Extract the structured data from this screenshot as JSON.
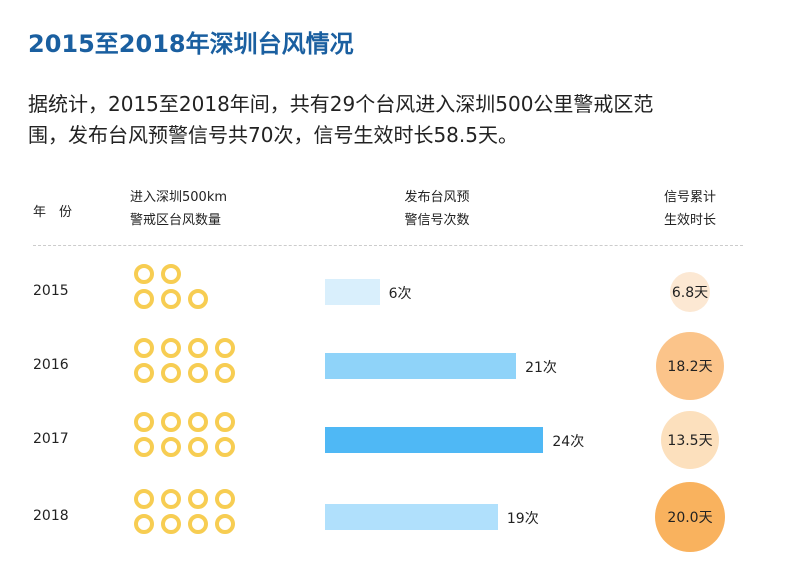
{
  "title": "2015至2018年深圳台风情况",
  "intro": [
    "据统计，2015至2018年间，共有29个台风进入深圳500公里警戒区范",
    "围，发布台风预警信号共70次，信号生效时长58.5天。"
  ],
  "headers": {
    "year": "年　份",
    "typhoons": [
      "进入深圳500km",
      "警戒区台风数量"
    ],
    "warnings": [
      "发布台风预",
      "警信号次数"
    ],
    "duration": [
      "信号累计",
      "生效时长"
    ]
  },
  "chart_data": {
    "type": "table",
    "categories": [
      "2015",
      "2016",
      "2017",
      "2018"
    ],
    "series": [
      {
        "name": "进入深圳500km警戒区台风数量",
        "values": [
          5,
          8,
          8,
          8
        ],
        "icon": "typhoon-icon",
        "color": "#f7cd52"
      },
      {
        "name": "发布台风预警信号次数",
        "values": [
          6,
          21,
          24,
          19
        ],
        "labels": [
          "6次",
          "21次",
          "24次",
          "19次"
        ],
        "colors": [
          "#d9effc",
          "#8fd3f9",
          "#4fb8f5",
          "#b0e0fc"
        ]
      },
      {
        "name": "信号累计生效时长",
        "values": [
          6.8,
          18.2,
          13.5,
          20.0
        ],
        "labels": [
          "6.8天",
          "18.2天",
          "13.5天",
          "20.0天"
        ],
        "colors": [
          "#fce8d3",
          "#fbc48a",
          "#fce0bd",
          "#f9b25e"
        ]
      }
    ]
  }
}
